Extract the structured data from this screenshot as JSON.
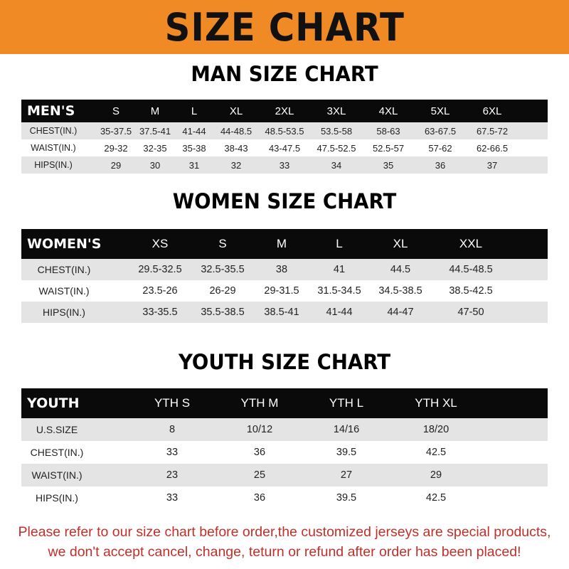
{
  "banner_title": "SIZE CHART",
  "colors": {
    "banner": "#f08a24",
    "header_row": "#0a0a0a",
    "stripe": "#e4e4e4",
    "notice": "#c0302a"
  },
  "men": {
    "title": "MAN SIZE CHART",
    "header": [
      "MEN'S",
      "S",
      "M",
      "L",
      "XL",
      "2XL",
      "3XL",
      "4XL",
      "5XL",
      "6XL"
    ],
    "rows": [
      [
        "CHEST(IN.)",
        "35-37.5",
        "37.5-41",
        "41-44",
        "44-48.5",
        "48.5-53.5",
        "53.5-58",
        "58-63",
        "63-67.5",
        "67.5-72"
      ],
      [
        "WAIST(IN.)",
        "29-32",
        "32-35",
        "35-38",
        "38-43",
        "43-47.5",
        "47.5-52.5",
        "52.5-57",
        "57-62",
        "62-66.5"
      ],
      [
        "HIPS(IN.)",
        "29",
        "30",
        "31",
        "32",
        "33",
        "34",
        "35",
        "36",
        "37"
      ]
    ]
  },
  "women": {
    "title": "WOMEN SIZE CHART",
    "header": [
      "WOMEN'S",
      "XS",
      "S",
      "M",
      "L",
      "XL",
      "XXL"
    ],
    "rows": [
      [
        "CHEST(IN.)",
        "29.5-32.5",
        "32.5-35.5",
        "38",
        "41",
        "44.5",
        "44.5-48.5"
      ],
      [
        "WAIST(IN.)",
        "23.5-26",
        "26-29",
        "29-31.5",
        "31.5-34.5",
        "34.5-38.5",
        "38.5-42.5"
      ],
      [
        "HIPS(IN.)",
        "33-35.5",
        "35.5-38.5",
        "38.5-41",
        "41-44",
        "44-47",
        "47-50"
      ]
    ]
  },
  "youth": {
    "title": "YOUTH SIZE CHART",
    "header": [
      "YOUTH",
      "YTH S",
      "YTH M",
      "YTH L",
      "YTH XL"
    ],
    "rows": [
      [
        "U.S.SIZE",
        "8",
        "10/12",
        "14/16",
        "18/20"
      ],
      [
        "CHEST(IN.)",
        "33",
        "36",
        "39.5",
        "42.5"
      ],
      [
        "WAIST(IN.)",
        "23",
        "25",
        "27",
        "29"
      ],
      [
        "HIPS(IN.)",
        "33",
        "36",
        "39.5",
        "42.5"
      ]
    ]
  },
  "notice": {
    "line1": "Please refer to our size chart before order,the customized jerseys are special products,",
    "line2": "we don't accept cancel, change, teturn or refund after order has been placed!"
  }
}
